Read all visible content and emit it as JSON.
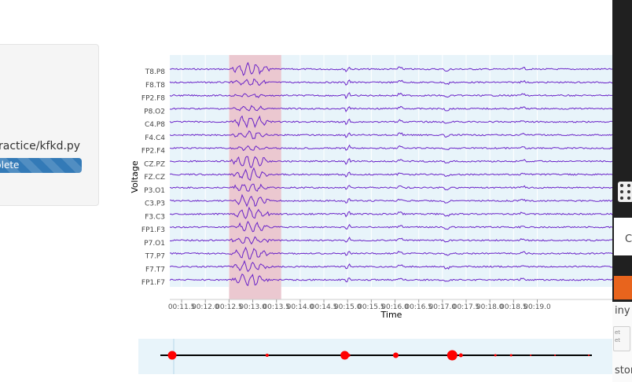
{
  "sidebar": {
    "file_path": "ractice/kfkd.py",
    "progress_label": "plete",
    "progress_color": "#337ab7"
  },
  "chart_data": {
    "type": "line",
    "title": "",
    "xlabel": "Time",
    "ylabel": "Voltage",
    "x_ticks": [
      "00:11.5",
      "00:12.0",
      "00:12.5",
      "00:13.0",
      "00:13.5",
      "00:14.0",
      "00:14.5",
      "00:15.0",
      "00:15.5",
      "00:16.0",
      "00:16.5",
      "00:17.0",
      "00:17.5",
      "00:18.0",
      "00:18.5",
      "00:19.0"
    ],
    "xlim_seconds": [
      11.5,
      19.8
    ],
    "highlight_region_seconds": [
      12.5,
      13.6
    ],
    "highlight_color": "#ebc8d0",
    "plot_background": "#e8f4fa",
    "line_color": "#6a23c8",
    "grid": true,
    "series": [
      {
        "name": "T8.P8",
        "burst": 1.0
      },
      {
        "name": "F8.T8",
        "burst": 0.6
      },
      {
        "name": "FP2.F8",
        "burst": 0.3
      },
      {
        "name": "P8.O2",
        "burst": 0.4
      },
      {
        "name": "C4.P8",
        "burst": 1.0
      },
      {
        "name": "F4.C4",
        "burst": 0.6
      },
      {
        "name": "FP2.F4",
        "burst": 0.4
      },
      {
        "name": "CZ.PZ",
        "burst": 1.0
      },
      {
        "name": "FZ.CZ",
        "burst": 0.9
      },
      {
        "name": "P3.O1",
        "burst": 0.7
      },
      {
        "name": "C3.P3",
        "burst": 1.0
      },
      {
        "name": "F3.C3",
        "burst": 0.9
      },
      {
        "name": "FP1.F3",
        "burst": 0.8
      },
      {
        "name": "P7.O1",
        "burst": 0.6
      },
      {
        "name": "T7.P7",
        "burst": 0.9
      },
      {
        "name": "F7.T7",
        "burst": 0.8
      },
      {
        "name": "FP1.F7",
        "burst": 1.0
      }
    ]
  },
  "timeline": {
    "background": "#e8f4fa",
    "dot_color": "#ff0000",
    "events_seconds": [
      0.3,
      12.4,
      22.3,
      22.8,
      28.8,
      36.0,
      37.1,
      41.5,
      43.5,
      46.0,
      49.1,
      53.4
    ]
  },
  "right_panel": {
    "letter": "C",
    "label_tiny": "iny",
    "label_store": "stor",
    "doc_line1": "et",
    "doc_line2": "et",
    "orange": "#e8641d"
  }
}
